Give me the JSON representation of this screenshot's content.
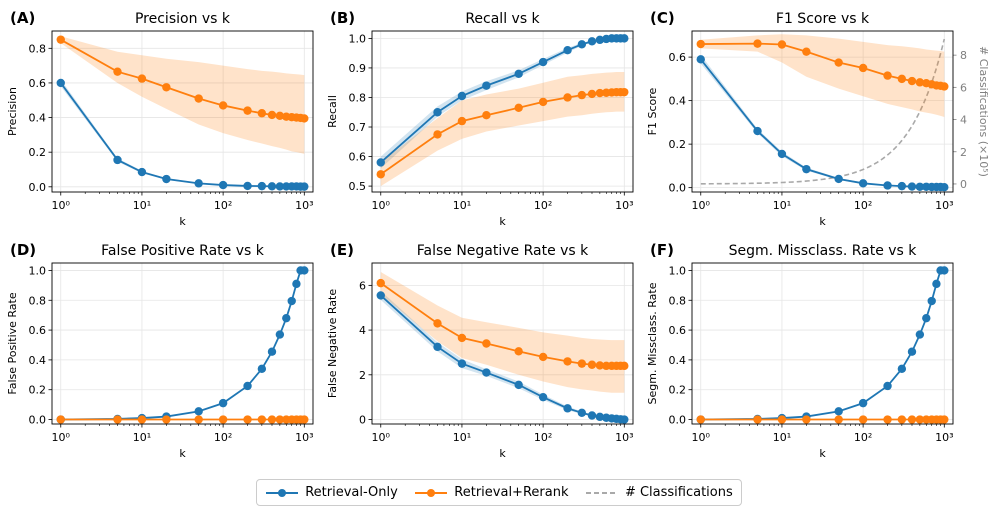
{
  "legend": {
    "retrieval_only": "Retrieval-Only",
    "rerank": "Retrieval+Rerank",
    "classifications": "# Classifications"
  },
  "colors": {
    "retrieval_only": "#1f77b4",
    "rerank": "#ff7f0e",
    "classifications": "#a9a9a9",
    "grid": "#e5e5e5"
  },
  "chart_data": [
    {
      "type": "line",
      "panel": "(A)",
      "title": "Precision vs k",
      "xlabel": "k",
      "ylabel": "Precision",
      "xscale": "log",
      "xlim": [
        0.78,
        1280
      ],
      "ylim": [
        -0.03,
        0.9
      ],
      "xticks": [
        1,
        10,
        100,
        1000
      ],
      "xtick_labels": [
        "10⁰",
        "10¹",
        "10²",
        "10³"
      ],
      "yticks": [
        0,
        0.2,
        0.4,
        0.6,
        0.8
      ],
      "ytick_labels": [
        "0.0",
        "0.2",
        "0.4",
        "0.6",
        "0.8"
      ],
      "x": [
        1,
        5,
        10,
        20,
        50,
        100,
        200,
        300,
        400,
        500,
        600,
        700,
        800,
        900,
        1000
      ],
      "series": [
        {
          "name": "Retrieval-Only",
          "color": "#1f77b4",
          "values": [
            0.6,
            0.155,
            0.085,
            0.045,
            0.02,
            0.01,
            0.005,
            0.004,
            0.003,
            0.002,
            0.002,
            0.002,
            0.002,
            0.001,
            0.001
          ],
          "lower": [
            0.58,
            0.145,
            0.078,
            0.04,
            0.017,
            0.008,
            0.004,
            0.003,
            0.002,
            0.002,
            0.001,
            0.001,
            0.001,
            0.001,
            0.001
          ],
          "upper": [
            0.62,
            0.165,
            0.092,
            0.05,
            0.023,
            0.012,
            0.006,
            0.005,
            0.004,
            0.003,
            0.003,
            0.003,
            0.003,
            0.002,
            0.002
          ]
        },
        {
          "name": "Retrieval+Rerank",
          "color": "#ff7f0e",
          "values": [
            0.85,
            0.665,
            0.625,
            0.575,
            0.51,
            0.47,
            0.44,
            0.425,
            0.415,
            0.41,
            0.405,
            0.402,
            0.4,
            0.398,
            0.395
          ],
          "lower": [
            0.83,
            0.6,
            0.52,
            0.45,
            0.36,
            0.31,
            0.27,
            0.25,
            0.235,
            0.225,
            0.215,
            0.205,
            0.2,
            0.195,
            0.19
          ],
          "upper": [
            0.87,
            0.78,
            0.76,
            0.74,
            0.72,
            0.7,
            0.68,
            0.67,
            0.665,
            0.66,
            0.655,
            0.652,
            0.65,
            0.648,
            0.645
          ]
        }
      ]
    },
    {
      "type": "line",
      "panel": "(B)",
      "title": "Recall vs k",
      "xlabel": "k",
      "ylabel": "Recall",
      "xscale": "log",
      "xlim": [
        0.78,
        1280
      ],
      "ylim": [
        0.48,
        1.025
      ],
      "xticks": [
        1,
        10,
        100,
        1000
      ],
      "xtick_labels": [
        "10⁰",
        "10¹",
        "10²",
        "10³"
      ],
      "yticks": [
        0.5,
        0.6,
        0.7,
        0.8,
        0.9,
        1.0
      ],
      "ytick_labels": [
        "0.5",
        "0.6",
        "0.7",
        "0.8",
        "0.9",
        "1.0"
      ],
      "x": [
        1,
        5,
        10,
        20,
        50,
        100,
        200,
        300,
        400,
        500,
        600,
        700,
        800,
        900,
        1000
      ],
      "series": [
        {
          "name": "Retrieval-Only",
          "color": "#1f77b4",
          "values": [
            0.58,
            0.75,
            0.805,
            0.84,
            0.88,
            0.92,
            0.96,
            0.98,
            0.99,
            0.995,
            0.998,
            1.0,
            1.0,
            1.0,
            1.0
          ],
          "lower": [
            0.56,
            0.735,
            0.79,
            0.825,
            0.868,
            0.91,
            0.952,
            0.975,
            0.986,
            0.992,
            0.996,
            0.998,
            0.999,
            0.999,
            1.0
          ],
          "upper": [
            0.6,
            0.77,
            0.82,
            0.855,
            0.892,
            0.93,
            0.968,
            0.985,
            0.994,
            0.998,
            1.0,
            1.0,
            1.0,
            1.0,
            1.0
          ]
        },
        {
          "name": "Retrieval+Rerank",
          "color": "#ff7f0e",
          "values": [
            0.54,
            0.675,
            0.72,
            0.74,
            0.765,
            0.785,
            0.8,
            0.808,
            0.812,
            0.815,
            0.816,
            0.817,
            0.818,
            0.818,
            0.818
          ],
          "lower": [
            0.5,
            0.62,
            0.66,
            0.685,
            0.705,
            0.72,
            0.735,
            0.74,
            0.745,
            0.748,
            0.75,
            0.751,
            0.752,
            0.752,
            0.752
          ],
          "upper": [
            0.58,
            0.73,
            0.79,
            0.81,
            0.83,
            0.85,
            0.87,
            0.875,
            0.88,
            0.882,
            0.884,
            0.885,
            0.886,
            0.886,
            0.886
          ]
        }
      ]
    },
    {
      "type": "line",
      "panel": "(C)",
      "title": "F1 Score vs k",
      "xlabel": "k",
      "ylabel": "F1 Score",
      "xscale": "log",
      "xlim": [
        0.78,
        1280
      ],
      "ylim": [
        -0.02,
        0.72
      ],
      "xticks": [
        1,
        10,
        100,
        1000
      ],
      "xtick_labels": [
        "10⁰",
        "10¹",
        "10²",
        "10³"
      ],
      "yticks": [
        0,
        0.2,
        0.4,
        0.6
      ],
      "ytick_labels": [
        "0.0",
        "0.2",
        "0.4",
        "0.6"
      ],
      "y2label": "# Classifications (×10⁵)",
      "y2lim": [
        -0.5,
        9.5
      ],
      "y2ticks": [
        0,
        2,
        4,
        6,
        8
      ],
      "y2tick_labels": [
        "0",
        "2",
        "4",
        "6",
        "8"
      ],
      "x": [
        1,
        5,
        10,
        20,
        50,
        100,
        200,
        300,
        400,
        500,
        600,
        700,
        800,
        900,
        1000
      ],
      "series": [
        {
          "name": "Retrieval-Only",
          "color": "#1f77b4",
          "values": [
            0.59,
            0.26,
            0.155,
            0.085,
            0.04,
            0.02,
            0.01,
            0.007,
            0.005,
            0.004,
            0.004,
            0.003,
            0.003,
            0.003,
            0.002
          ],
          "lower": [
            0.57,
            0.25,
            0.145,
            0.078,
            0.035,
            0.017,
            0.008,
            0.006,
            0.004,
            0.003,
            0.003,
            0.002,
            0.002,
            0.002,
            0.002
          ],
          "upper": [
            0.61,
            0.27,
            0.165,
            0.092,
            0.045,
            0.023,
            0.012,
            0.008,
            0.006,
            0.005,
            0.005,
            0.004,
            0.004,
            0.004,
            0.003
          ]
        },
        {
          "name": "Retrieval+Rerank",
          "color": "#ff7f0e",
          "values": [
            0.66,
            0.662,
            0.658,
            0.625,
            0.575,
            0.55,
            0.515,
            0.5,
            0.49,
            0.484,
            0.48,
            0.475,
            0.47,
            0.468,
            0.465
          ],
          "lower": [
            0.64,
            0.625,
            0.575,
            0.51,
            0.455,
            0.42,
            0.385,
            0.37,
            0.36,
            0.35,
            0.345,
            0.34,
            0.335,
            0.33,
            0.325
          ],
          "upper": [
            0.68,
            0.7,
            0.705,
            0.7,
            0.685,
            0.67,
            0.655,
            0.65,
            0.645,
            0.64,
            0.635,
            0.632,
            0.63,
            0.628,
            0.625
          ]
        }
      ],
      "secondary_series": {
        "name": "# Classifications",
        "color": "#a9a9a9",
        "style": "dashed",
        "x": [
          1,
          5,
          10,
          20,
          50,
          100,
          200,
          300,
          400,
          500,
          600,
          700,
          800,
          900,
          1000
        ],
        "values": [
          0.009,
          0.045,
          0.09,
          0.18,
          0.45,
          0.9,
          1.8,
          2.7,
          3.6,
          4.5,
          5.4,
          6.3,
          7.2,
          8.1,
          9.0
        ]
      }
    },
    {
      "type": "line",
      "panel": "(D)",
      "title": "False Positive Rate vs k",
      "xlabel": "k",
      "ylabel": "False Positive Rate",
      "xscale": "log",
      "xlim": [
        0.78,
        1280
      ],
      "ylim": [
        -0.03,
        1.05
      ],
      "xticks": [
        1,
        10,
        100,
        1000
      ],
      "xtick_labels": [
        "10⁰",
        "10¹",
        "10²",
        "10³"
      ],
      "yticks": [
        0,
        0.2,
        0.4,
        0.6,
        0.8,
        1.0
      ],
      "ytick_labels": [
        "0.0",
        "0.2",
        "0.4",
        "0.6",
        "0.8",
        "1.0"
      ],
      "x": [
        1,
        5,
        10,
        20,
        50,
        100,
        200,
        300,
        400,
        500,
        600,
        700,
        800,
        900,
        1000
      ],
      "series": [
        {
          "name": "Retrieval-Only",
          "color": "#1f77b4",
          "values": [
            0.0,
            0.004,
            0.01,
            0.02,
            0.055,
            0.11,
            0.225,
            0.34,
            0.455,
            0.57,
            0.68,
            0.795,
            0.91,
            1.0,
            1.0
          ]
        },
        {
          "name": "Retrieval+Rerank",
          "color": "#ff7f0e",
          "values": [
            0.0,
            0.0,
            0.0,
            0.0,
            0.0,
            0.0,
            0.0,
            0.0,
            0.0,
            0.0,
            0.0,
            0.0,
            0.0,
            0.0,
            0.0
          ]
        }
      ]
    },
    {
      "type": "line",
      "panel": "(E)",
      "title": "False Negative Rate vs k",
      "xlabel": "k",
      "ylabel": "False Negative Rate",
      "xscale": "log",
      "xlim": [
        0.78,
        1280
      ],
      "ylim": [
        -0.2,
        7.0
      ],
      "xticks": [
        1,
        10,
        100,
        1000
      ],
      "xtick_labels": [
        "10⁰",
        "10¹",
        "10²",
        "10³"
      ],
      "yticks": [
        0,
        2,
        4,
        6
      ],
      "ytick_labels": [
        "0",
        "2",
        "4",
        "6"
      ],
      "x": [
        1,
        5,
        10,
        20,
        50,
        100,
        200,
        300,
        400,
        500,
        600,
        700,
        800,
        900,
        1000
      ],
      "series": [
        {
          "name": "Retrieval-Only",
          "color": "#1f77b4",
          "values": [
            5.55,
            3.25,
            2.5,
            2.1,
            1.55,
            1.0,
            0.5,
            0.3,
            0.18,
            0.12,
            0.08,
            0.05,
            0.03,
            0.01,
            0.0
          ],
          "lower": [
            5.35,
            3.05,
            2.3,
            1.95,
            1.4,
            0.88,
            0.42,
            0.24,
            0.13,
            0.08,
            0.05,
            0.03,
            0.01,
            0.0,
            0.0
          ],
          "upper": [
            5.75,
            3.45,
            2.7,
            2.25,
            1.7,
            1.12,
            0.58,
            0.36,
            0.23,
            0.16,
            0.11,
            0.07,
            0.05,
            0.02,
            0.0
          ]
        },
        {
          "name": "Retrieval+Rerank",
          "color": "#ff7f0e",
          "values": [
            6.1,
            4.3,
            3.65,
            3.4,
            3.05,
            2.8,
            2.6,
            2.5,
            2.45,
            2.42,
            2.4,
            2.4,
            2.4,
            2.4,
            2.4
          ],
          "lower": [
            5.6,
            3.5,
            2.75,
            2.45,
            2.0,
            1.7,
            1.45,
            1.35,
            1.3,
            1.25,
            1.22,
            1.2,
            1.2,
            1.2,
            1.2
          ],
          "upper": [
            6.6,
            5.1,
            4.55,
            4.35,
            4.1,
            3.9,
            3.75,
            3.65,
            3.6,
            3.58,
            3.56,
            3.55,
            3.55,
            3.55,
            3.55
          ]
        }
      ]
    },
    {
      "type": "line",
      "panel": "(F)",
      "title": "Segm. Missclass. Rate vs k",
      "xlabel": "k",
      "ylabel": "Segm. Missclass. Rate",
      "xscale": "log",
      "xlim": [
        0.78,
        1280
      ],
      "ylim": [
        -0.03,
        1.05
      ],
      "xticks": [
        1,
        10,
        100,
        1000
      ],
      "xtick_labels": [
        "10⁰",
        "10¹",
        "10²",
        "10³"
      ],
      "yticks": [
        0,
        0.2,
        0.4,
        0.6,
        0.8,
        1.0
      ],
      "ytick_labels": [
        "0.0",
        "0.2",
        "0.4",
        "0.6",
        "0.8",
        "1.0"
      ],
      "x": [
        1,
        5,
        10,
        20,
        50,
        100,
        200,
        300,
        400,
        500,
        600,
        700,
        800,
        900,
        1000
      ],
      "series": [
        {
          "name": "Retrieval-Only",
          "color": "#1f77b4",
          "values": [
            0.0,
            0.004,
            0.01,
            0.02,
            0.055,
            0.11,
            0.225,
            0.34,
            0.455,
            0.57,
            0.68,
            0.795,
            0.91,
            1.0,
            1.0
          ]
        },
        {
          "name": "Retrieval+Rerank",
          "color": "#ff7f0e",
          "values": [
            0.0,
            0.0,
            0.0,
            0.0,
            0.0,
            0.0,
            0.0,
            0.0,
            0.0,
            0.0,
            0.0,
            0.0,
            0.0,
            0.0,
            0.0
          ]
        }
      ]
    }
  ]
}
